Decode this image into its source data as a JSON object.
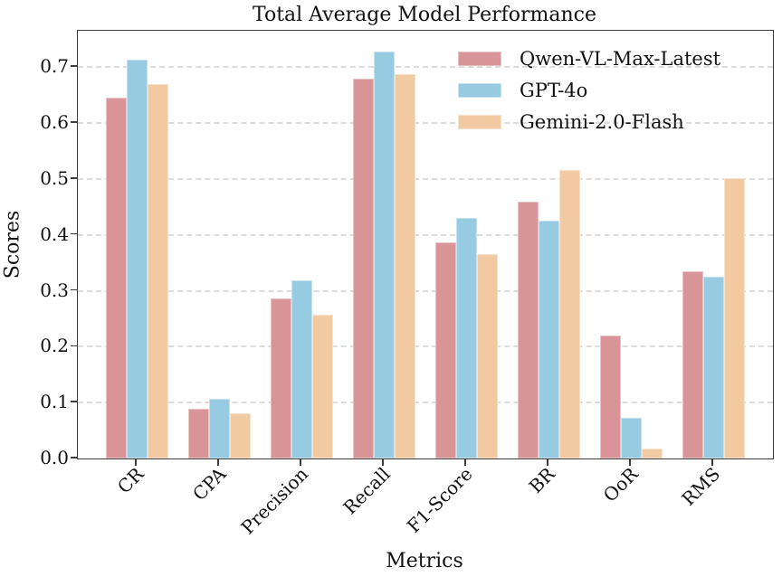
{
  "chart_data": {
    "type": "bar",
    "title": "Total Average Model Performance",
    "xlabel": "Metrics",
    "ylabel": "Scores",
    "categories": [
      "CR",
      "CPA",
      "Precision",
      "Recall",
      "F1-Score",
      "BR",
      "OoR",
      "RMS"
    ],
    "series": [
      {
        "name": "Qwen-VL-Max-Latest",
        "color": "#d89496",
        "values": [
          0.645,
          0.089,
          0.287,
          0.679,
          0.386,
          0.46,
          0.22,
          0.334
        ]
      },
      {
        "name": "GPT-4o",
        "color": "#97cbe2",
        "values": [
          0.713,
          0.106,
          0.318,
          0.727,
          0.43,
          0.426,
          0.073,
          0.325
        ]
      },
      {
        "name": "Gemini-2.0-Flash",
        "color": "#f2caa2",
        "values": [
          0.669,
          0.081,
          0.257,
          0.687,
          0.365,
          0.516,
          0.018,
          0.501
        ]
      }
    ],
    "ylim": [
      0,
      0.765
    ],
    "yticks": [
      0.0,
      0.1,
      0.2,
      0.3,
      0.4,
      0.5,
      0.6,
      0.7
    ],
    "grid": "horizontal-dashed",
    "legend_position": "upper-right"
  }
}
